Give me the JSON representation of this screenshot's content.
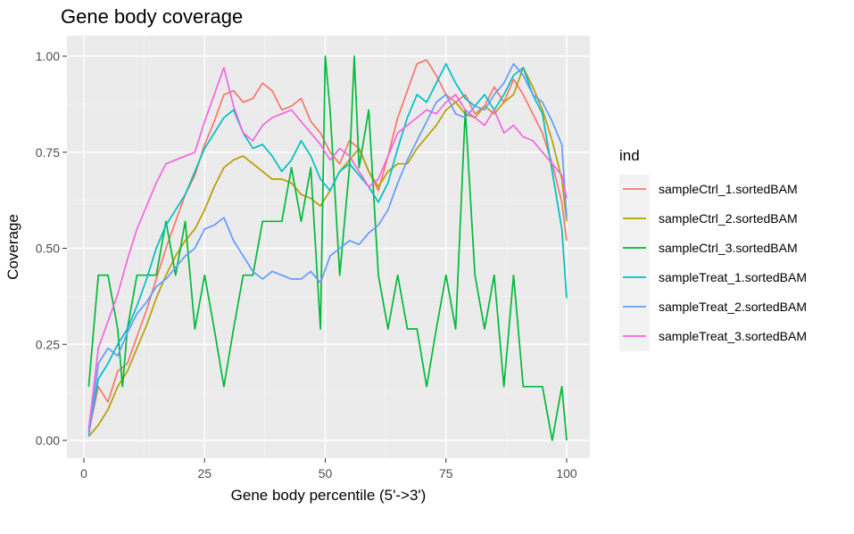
{
  "chart_data": {
    "type": "line",
    "title": "Gene body coverage",
    "xlabel": "Gene body percentile (5'->3')",
    "ylabel": "Coverage",
    "xlim": [
      1,
      100
    ],
    "ylim": [
      0,
      1
    ],
    "x_ticks": [
      0,
      25,
      50,
      75,
      100
    ],
    "x_tick_labels": [
      "0",
      "25",
      "50",
      "75",
      "100"
    ],
    "y_ticks": [
      0,
      0.25,
      0.5,
      0.75,
      1
    ],
    "y_tick_labels": [
      "0.00",
      "0.25",
      "0.50",
      "0.75",
      "1.00"
    ],
    "grid": true,
    "panel_background": "#ebebeb",
    "legend": {
      "title": "ind",
      "placement": "right"
    },
    "series": [
      {
        "name": "sampleCtrl_1.sortedBAM",
        "color": "#f8766d",
        "x": [
          1,
          3,
          5,
          7,
          9,
          11,
          13,
          15,
          17,
          19,
          21,
          23,
          25,
          27,
          29,
          31,
          33,
          35,
          37,
          39,
          41,
          43,
          45,
          47,
          49,
          51,
          53,
          55,
          57,
          59,
          61,
          63,
          65,
          67,
          69,
          71,
          73,
          75,
          77,
          79,
          81,
          83,
          85,
          87,
          89,
          91,
          93,
          95,
          97,
          99,
          100
        ],
        "y": [
          0.02,
          0.14,
          0.1,
          0.18,
          0.2,
          0.27,
          0.34,
          0.42,
          0.5,
          0.57,
          0.64,
          0.69,
          0.77,
          0.83,
          0.9,
          0.91,
          0.88,
          0.89,
          0.93,
          0.91,
          0.86,
          0.87,
          0.89,
          0.83,
          0.8,
          0.75,
          0.72,
          0.78,
          0.76,
          0.7,
          0.65,
          0.74,
          0.84,
          0.91,
          0.98,
          0.99,
          0.95,
          0.9,
          0.88,
          0.9,
          0.85,
          0.87,
          0.92,
          0.88,
          0.94,
          0.9,
          0.85,
          0.8,
          0.72,
          0.62,
          0.52
        ]
      },
      {
        "name": "sampleCtrl_2.sortedBAM",
        "color": "#b79f00",
        "x": [
          1,
          3,
          5,
          7,
          9,
          11,
          13,
          15,
          17,
          19,
          21,
          23,
          25,
          27,
          29,
          31,
          33,
          35,
          37,
          39,
          41,
          43,
          45,
          47,
          49,
          51,
          53,
          55,
          57,
          59,
          61,
          63,
          65,
          67,
          69,
          71,
          73,
          75,
          77,
          79,
          81,
          83,
          85,
          87,
          89,
          91,
          93,
          95,
          97,
          99,
          100
        ],
        "y": [
          0.01,
          0.04,
          0.08,
          0.14,
          0.18,
          0.24,
          0.3,
          0.37,
          0.43,
          0.48,
          0.52,
          0.55,
          0.6,
          0.66,
          0.71,
          0.73,
          0.74,
          0.72,
          0.7,
          0.68,
          0.68,
          0.67,
          0.64,
          0.63,
          0.61,
          0.65,
          0.7,
          0.73,
          0.76,
          0.7,
          0.66,
          0.7,
          0.72,
          0.72,
          0.76,
          0.79,
          0.82,
          0.86,
          0.88,
          0.85,
          0.84,
          0.87,
          0.85,
          0.88,
          0.9,
          0.97,
          0.92,
          0.86,
          0.78,
          0.68,
          0.57
        ]
      },
      {
        "name": "sampleCtrl_3.sortedBAM",
        "color": "#00ba38",
        "x": [
          1,
          3,
          5,
          7,
          8,
          9,
          11,
          13,
          15,
          17,
          19,
          21,
          23,
          25,
          27,
          29,
          31,
          33,
          35,
          37,
          39,
          41,
          43,
          45,
          47,
          49,
          50,
          51,
          53,
          55,
          56,
          57,
          59,
          61,
          63,
          65,
          67,
          69,
          71,
          73,
          75,
          77,
          79,
          81,
          83,
          85,
          87,
          89,
          91,
          93,
          95,
          97,
          99,
          100
        ],
        "y": [
          0.14,
          0.43,
          0.43,
          0.29,
          0.14,
          0.29,
          0.43,
          0.43,
          0.43,
          0.57,
          0.43,
          0.57,
          0.29,
          0.43,
          0.29,
          0.14,
          0.29,
          0.43,
          0.43,
          0.57,
          0.57,
          0.57,
          0.71,
          0.57,
          0.71,
          0.29,
          1.0,
          0.86,
          0.43,
          0.71,
          1.0,
          0.71,
          0.86,
          0.43,
          0.29,
          0.43,
          0.29,
          0.29,
          0.14,
          0.29,
          0.43,
          0.29,
          0.86,
          0.43,
          0.29,
          0.43,
          0.14,
          0.43,
          0.14,
          0.14,
          0.14,
          0.0,
          0.14,
          0.0
        ]
      },
      {
        "name": "sampleTreat_1.sortedBAM",
        "color": "#00bfc4",
        "x": [
          1,
          3,
          5,
          7,
          9,
          11,
          13,
          15,
          17,
          19,
          21,
          23,
          25,
          27,
          29,
          31,
          33,
          35,
          37,
          39,
          41,
          43,
          45,
          47,
          49,
          51,
          53,
          55,
          57,
          59,
          61,
          63,
          65,
          67,
          69,
          71,
          73,
          75,
          77,
          79,
          81,
          83,
          85,
          87,
          89,
          91,
          93,
          95,
          97,
          99,
          100
        ],
        "y": [
          0.02,
          0.16,
          0.2,
          0.25,
          0.29,
          0.35,
          0.42,
          0.5,
          0.56,
          0.6,
          0.64,
          0.7,
          0.76,
          0.8,
          0.84,
          0.86,
          0.8,
          0.76,
          0.77,
          0.74,
          0.7,
          0.73,
          0.78,
          0.74,
          0.68,
          0.65,
          0.7,
          0.72,
          0.69,
          0.66,
          0.62,
          0.67,
          0.76,
          0.84,
          0.9,
          0.88,
          0.93,
          0.98,
          0.93,
          0.89,
          0.87,
          0.9,
          0.86,
          0.9,
          0.95,
          0.97,
          0.9,
          0.85,
          0.7,
          0.55,
          0.37
        ]
      },
      {
        "name": "sampleTreat_2.sortedBAM",
        "color": "#619cff",
        "x": [
          1,
          3,
          5,
          7,
          9,
          11,
          13,
          15,
          17,
          19,
          21,
          23,
          25,
          27,
          29,
          31,
          33,
          35,
          37,
          39,
          41,
          43,
          45,
          47,
          49,
          51,
          53,
          55,
          57,
          59,
          61,
          63,
          65,
          67,
          69,
          71,
          73,
          75,
          77,
          79,
          81,
          83,
          85,
          87,
          89,
          91,
          93,
          95,
          97,
          99,
          100
        ],
        "y": [
          0.01,
          0.2,
          0.24,
          0.22,
          0.28,
          0.33,
          0.36,
          0.4,
          0.42,
          0.45,
          0.48,
          0.5,
          0.55,
          0.56,
          0.58,
          0.52,
          0.48,
          0.44,
          0.42,
          0.44,
          0.43,
          0.42,
          0.42,
          0.44,
          0.41,
          0.48,
          0.5,
          0.52,
          0.51,
          0.54,
          0.56,
          0.6,
          0.67,
          0.73,
          0.78,
          0.83,
          0.88,
          0.9,
          0.85,
          0.84,
          0.87,
          0.86,
          0.9,
          0.93,
          0.98,
          0.95,
          0.9,
          0.88,
          0.83,
          0.77,
          0.58
        ]
      },
      {
        "name": "sampleTreat_3.sortedBAM",
        "color": "#f564e3",
        "x": [
          1,
          3,
          5,
          7,
          9,
          11,
          13,
          15,
          17,
          19,
          21,
          23,
          25,
          27,
          29,
          31,
          33,
          35,
          37,
          39,
          41,
          43,
          45,
          47,
          49,
          51,
          53,
          55,
          57,
          59,
          61,
          63,
          65,
          67,
          69,
          71,
          73,
          75,
          77,
          79,
          81,
          83,
          85,
          87,
          89,
          91,
          93,
          95,
          97,
          99,
          100
        ],
        "y": [
          0.03,
          0.24,
          0.31,
          0.38,
          0.47,
          0.55,
          0.61,
          0.67,
          0.72,
          0.73,
          0.74,
          0.75,
          0.83,
          0.9,
          0.97,
          0.87,
          0.8,
          0.78,
          0.82,
          0.84,
          0.85,
          0.86,
          0.83,
          0.8,
          0.77,
          0.73,
          0.76,
          0.74,
          0.7,
          0.66,
          0.68,
          0.74,
          0.8,
          0.82,
          0.84,
          0.86,
          0.85,
          0.88,
          0.9,
          0.86,
          0.84,
          0.82,
          0.86,
          0.8,
          0.82,
          0.79,
          0.78,
          0.75,
          0.72,
          0.69,
          0.63
        ]
      }
    ]
  }
}
